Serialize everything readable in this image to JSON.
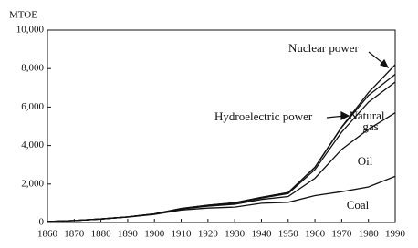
{
  "chart_data": {
    "type": "line",
    "y_label": "MTOE",
    "x": [
      1860,
      1870,
      1880,
      1890,
      1900,
      1910,
      1920,
      1930,
      1940,
      1950,
      1960,
      1970,
      1980,
      1990
    ],
    "stacked": true,
    "color": "#111111",
    "series": [
      {
        "name": "Coal",
        "values": [
          50,
          100,
          180,
          280,
          420,
          650,
          750,
          800,
          1000,
          1050,
          1400,
          1600,
          1850,
          2400
        ]
      },
      {
        "name": "Oil",
        "values": [
          0,
          0,
          0,
          10,
          20,
          50,
          100,
          150,
          200,
          300,
          900,
          2200,
          3000,
          3300
        ]
      },
      {
        "name": "Natural gas",
        "values": [
          0,
          0,
          0,
          0,
          10,
          20,
          30,
          50,
          70,
          150,
          450,
          900,
          1400,
          1600
        ]
      },
      {
        "name": "Hydroelectric power",
        "values": [
          0,
          0,
          0,
          0,
          0,
          10,
          20,
          30,
          40,
          60,
          120,
          250,
          350,
          400
        ]
      },
      {
        "name": "Nuclear power",
        "values": [
          0,
          0,
          0,
          0,
          0,
          0,
          0,
          0,
          0,
          0,
          0,
          20,
          150,
          500
        ]
      }
    ],
    "xlim": [
      1860,
      1990
    ],
    "xticks": [
      1860,
      1870,
      1880,
      1890,
      1900,
      1910,
      1920,
      1930,
      1940,
      1950,
      1960,
      1970,
      1980,
      1990
    ],
    "ylim": [
      0,
      10000
    ],
    "yticks": [
      0,
      {
        "value": 2000,
        "label": "2,000"
      },
      {
        "value": 4000,
        "label": "4,000"
      },
      {
        "value": 6000,
        "label": "6,000"
      },
      {
        "value": 8000,
        "label": "8,000"
      },
      {
        "value": 10000,
        "label": "10,000"
      }
    ]
  }
}
